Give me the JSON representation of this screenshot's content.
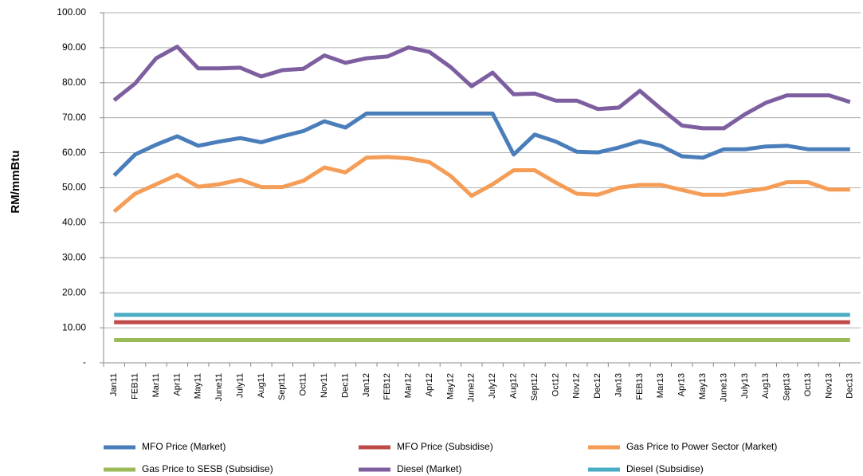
{
  "chart_data": {
    "type": "line",
    "y_label": "RM/mmBtu",
    "categories": [
      "Jan11",
      "FEB11",
      "Mar11",
      "Apr11",
      "May11",
      "June11",
      "July11",
      "Aug11",
      "Sept11",
      "Oct11",
      "Nov11",
      "Dec11",
      "Jan12",
      "FEB12",
      "Mar12",
      "Apr12",
      "May12",
      "June12",
      "July12",
      "Aug12",
      "Sept12",
      "Oct12",
      "Nov12",
      "Dec12",
      "Jan13",
      "FEB13",
      "Mar13",
      "Apr13",
      "May13",
      "June13",
      "July13",
      "Aug13",
      "Sept13",
      "Oct13",
      "Nov13",
      "Dec13"
    ],
    "series": [
      {
        "name": "MFO Price (Market)",
        "color": "#4a7ebb",
        "values": [
          53.5,
          59.5,
          62.3,
          64.7,
          62,
          63.2,
          64.2,
          63,
          64.7,
          66.2,
          69,
          67.2,
          71.2,
          71.2,
          71.2,
          71.2,
          71.2,
          71.2,
          71.2,
          59.5,
          65.2,
          63.2,
          60.3,
          60.1,
          61.5,
          63.3,
          62,
          59,
          58.6,
          61,
          61,
          61.8,
          62,
          61,
          61,
          61
        ]
      },
      {
        "name": "MFO Price (Subsidise)",
        "color": "#be4b48",
        "values": [
          11.6,
          11.6,
          11.6,
          11.6,
          11.6,
          11.6,
          11.6,
          11.6,
          11.6,
          11.6,
          11.6,
          11.6,
          11.6,
          11.6,
          11.6,
          11.6,
          11.6,
          11.6,
          11.6,
          11.6,
          11.6,
          11.6,
          11.6,
          11.6,
          11.6,
          11.6,
          11.6,
          11.6,
          11.6,
          11.6,
          11.6,
          11.6,
          11.6,
          11.6,
          11.6,
          11.6
        ]
      },
      {
        "name": "Gas Price to Power Sector (Market)",
        "color": "#f59d56",
        "values": [
          43.2,
          48.3,
          51,
          53.7,
          50.3,
          51,
          52.3,
          50.2,
          50.2,
          52,
          55.8,
          54.4,
          58.6,
          58.8,
          58.4,
          57.3,
          53.4,
          47.7,
          51,
          55,
          55,
          51.5,
          48.3,
          48,
          50,
          50.8,
          50.8,
          49.4,
          48,
          48,
          49,
          49.8,
          51.6,
          51.6,
          49.5,
          49.5
        ]
      },
      {
        "name": "Gas Price to SESB (Subsidise)",
        "color": "#9bbb59",
        "values": [
          6.5,
          6.5,
          6.5,
          6.5,
          6.5,
          6.5,
          6.5,
          6.5,
          6.5,
          6.5,
          6.5,
          6.5,
          6.5,
          6.5,
          6.5,
          6.5,
          6.5,
          6.5,
          6.5,
          6.5,
          6.5,
          6.5,
          6.5,
          6.5,
          6.5,
          6.5,
          6.5,
          6.5,
          6.5,
          6.5,
          6.5,
          6.5,
          6.5,
          6.5,
          6.5,
          6.5
        ]
      },
      {
        "name": "Diesel (Market)",
        "color": "#7d5fa0",
        "values": [
          75,
          79.8,
          87,
          90.3,
          84.1,
          84.1,
          84.3,
          81.8,
          83.6,
          84,
          87.8,
          85.7,
          87,
          87.5,
          90.1,
          88.8,
          84.5,
          79,
          82.9,
          76.7,
          76.9,
          74.9,
          74.9,
          72.5,
          72.9,
          77.7,
          72.6,
          67.8,
          67,
          67,
          71,
          74.3,
          76.4,
          76.4,
          76.4,
          74.5
        ]
      },
      {
        "name": "Diesel (Subsidise)",
        "color": "#4bacc6",
        "values": [
          13.7,
          13.7,
          13.7,
          13.7,
          13.7,
          13.7,
          13.7,
          13.7,
          13.7,
          13.7,
          13.7,
          13.7,
          13.7,
          13.7,
          13.7,
          13.7,
          13.7,
          13.7,
          13.7,
          13.7,
          13.7,
          13.7,
          13.7,
          13.7,
          13.7,
          13.7,
          13.7,
          13.7,
          13.7,
          13.7,
          13.7,
          13.7,
          13.7,
          13.7,
          13.7,
          13.7
        ]
      }
    ],
    "ylim": [
      0,
      100
    ],
    "yticks": [
      {
        "value": 0,
        "label": "-"
      },
      {
        "value": 10,
        "label": "10.00"
      },
      {
        "value": 20,
        "label": "20.00"
      },
      {
        "value": 30,
        "label": "30.00"
      },
      {
        "value": 40,
        "label": "40.00"
      },
      {
        "value": 50,
        "label": "50.00"
      },
      {
        "value": 60,
        "label": "60.00"
      },
      {
        "value": 70,
        "label": "70.00"
      },
      {
        "value": 80,
        "label": "80.00"
      },
      {
        "value": 90,
        "label": "90.00"
      },
      {
        "value": 100,
        "label": "100.00"
      }
    ],
    "grid": true
  }
}
